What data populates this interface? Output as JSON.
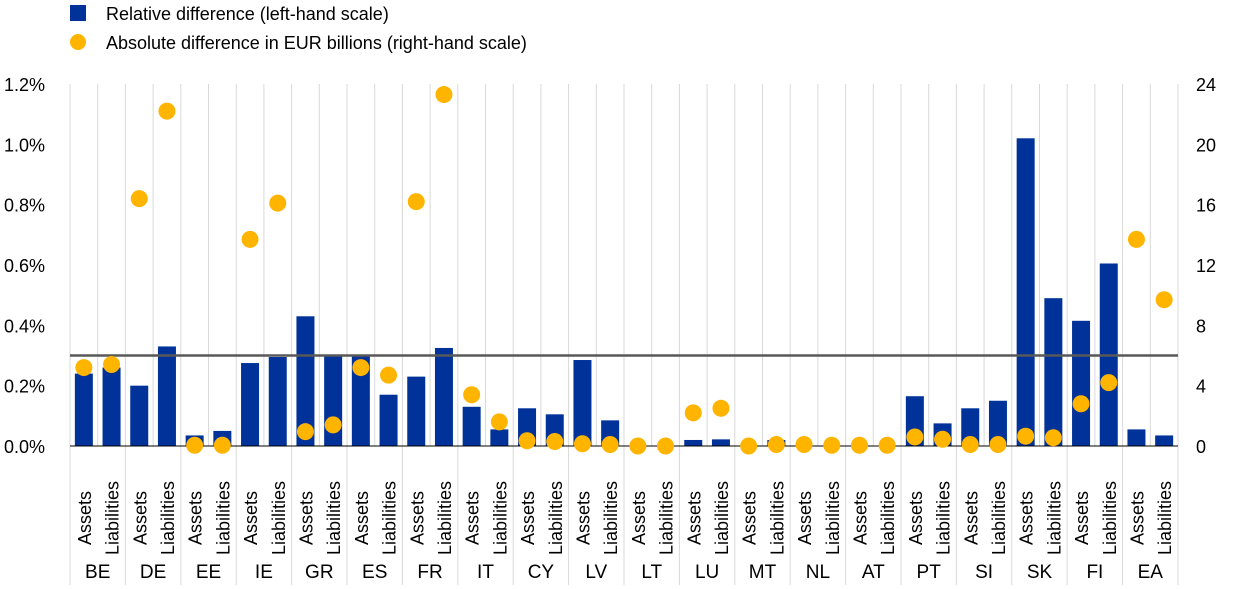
{
  "chart_data": {
    "type": "bar",
    "legend": {
      "relative_label": "Relative difference (left-hand scale)",
      "absolute_label": "Absolute difference in EUR billions (right-hand scale)"
    },
    "colors": {
      "bar": "#003299",
      "dot": "#FFB400",
      "threshold": "#595959",
      "grid": "#d9d9d9"
    },
    "left_axis": {
      "ylim": [
        0,
        1.2
      ],
      "ticks": [
        "0.0%",
        "0.2%",
        "0.4%",
        "0.6%",
        "0.8%",
        "1.0%",
        "1.2%"
      ]
    },
    "right_axis": {
      "ylim": [
        0,
        24
      ],
      "ticks": [
        "0",
        "4",
        "8",
        "12",
        "16",
        "20",
        "24"
      ]
    },
    "threshold": 0.3,
    "sub_labels": [
      "Assets",
      "Liabilities"
    ],
    "groups": [
      {
        "country": "BE",
        "relative": [
          0.24,
          0.26
        ],
        "absolute": [
          5.2,
          5.4
        ]
      },
      {
        "country": "DE",
        "relative": [
          0.2,
          0.33
        ],
        "absolute": [
          16.4,
          22.2
        ]
      },
      {
        "country": "EE",
        "relative": [
          0.035,
          0.05
        ],
        "absolute": [
          0.05,
          0.05
        ]
      },
      {
        "country": "IE",
        "relative": [
          0.275,
          0.295
        ],
        "absolute": [
          13.7,
          16.1
        ]
      },
      {
        "country": "GR",
        "relative": [
          0.43,
          0.3
        ],
        "absolute": [
          0.95,
          1.4
        ]
      },
      {
        "country": "ES",
        "relative": [
          0.3,
          0.17
        ],
        "absolute": [
          5.2,
          4.7
        ]
      },
      {
        "country": "FR",
        "relative": [
          0.23,
          0.325
        ],
        "absolute": [
          16.2,
          23.3
        ]
      },
      {
        "country": "IT",
        "relative": [
          0.13,
          0.055
        ],
        "absolute": [
          3.4,
          1.6
        ]
      },
      {
        "country": "CY",
        "relative": [
          0.125,
          0.105
        ],
        "absolute": [
          0.35,
          0.3
        ]
      },
      {
        "country": "LV",
        "relative": [
          0.285,
          0.085
        ],
        "absolute": [
          0.15,
          0.1
        ]
      },
      {
        "country": "LT",
        "relative": [
          0.0,
          0.0
        ],
        "absolute": [
          0.0,
          0.0
        ]
      },
      {
        "country": "LU",
        "relative": [
          0.02,
          0.022
        ],
        "absolute": [
          2.2,
          2.5
        ]
      },
      {
        "country": "MT",
        "relative": [
          0.0,
          0.02
        ],
        "absolute": [
          0.0,
          0.1
        ]
      },
      {
        "country": "NL",
        "relative": [
          0.0,
          0.0
        ],
        "absolute": [
          0.1,
          0.05
        ]
      },
      {
        "country": "AT",
        "relative": [
          0.0,
          0.0
        ],
        "absolute": [
          0.05,
          0.05
        ]
      },
      {
        "country": "PT",
        "relative": [
          0.165,
          0.075
        ],
        "absolute": [
          0.6,
          0.45
        ]
      },
      {
        "country": "SI",
        "relative": [
          0.125,
          0.15
        ],
        "absolute": [
          0.1,
          0.1
        ]
      },
      {
        "country": "SK",
        "relative": [
          1.02,
          0.49
        ],
        "absolute": [
          0.65,
          0.55
        ]
      },
      {
        "country": "FI",
        "relative": [
          0.415,
          0.605
        ],
        "absolute": [
          2.8,
          4.2
        ]
      },
      {
        "country": "EA",
        "relative": [
          0.055,
          0.035
        ],
        "absolute": [
          13.7,
          9.7
        ]
      }
    ]
  }
}
